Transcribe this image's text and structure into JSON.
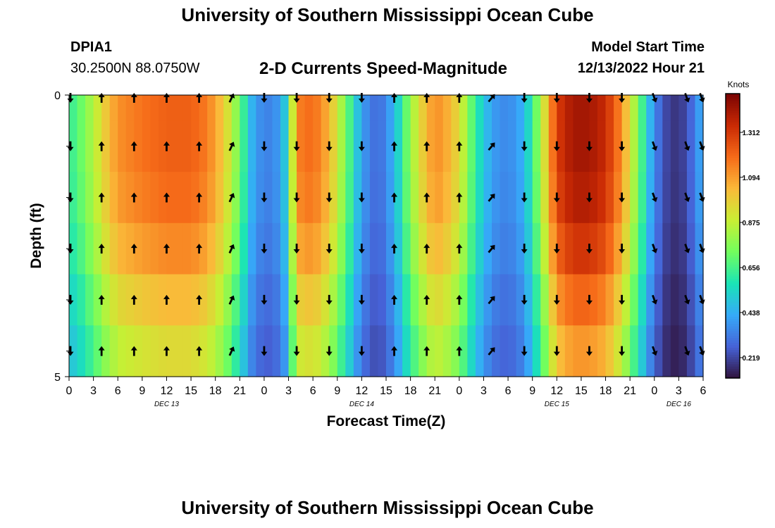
{
  "header": {
    "title": "University of Southern Mississippi Ocean Cube",
    "station_id": "DPIA1",
    "station_location": "30.2500N  88.0750W",
    "chart_title": "2-D Currents Speed-Magnitude",
    "model_start_label": "Model Start Time",
    "model_start_value": "12/13/2022 Hour 21"
  },
  "footer": {
    "title": "University of Southern Mississippi Ocean Cube"
  },
  "chart_data": {
    "type": "heatmap",
    "title": "2-D Currents Speed-Magnitude",
    "xlabel": "Forecast Time(Z)",
    "ylabel": "Depth (ft)",
    "x_tick_labels": [
      "0",
      "3",
      "6",
      "9",
      "12",
      "15",
      "18",
      "21",
      "0",
      "3",
      "6",
      "9",
      "12",
      "15",
      "18",
      "21",
      "0",
      "3",
      "6",
      "9",
      "12",
      "15",
      "18",
      "21",
      "0",
      "3",
      "6"
    ],
    "date_labels": [
      {
        "label": "DEC 13",
        "hour_index": 12
      },
      {
        "label": "DEC 14",
        "hour_index": 36
      },
      {
        "label": "DEC 15",
        "hour_index": 60
      },
      {
        "label": "DEC 16",
        "hour_index": 75
      }
    ],
    "x_range_hours": [
      0,
      78
    ],
    "y_tick_labels": [
      "0",
      "5"
    ],
    "y_range": [
      0,
      5
    ],
    "depth_levels": 5,
    "colorbar": {
      "label": "Knots",
      "ticks": [
        0.219,
        0.438,
        0.656,
        0.875,
        1.094,
        1.312
      ],
      "range": [
        0.12,
        1.5
      ],
      "colors": [
        "#30123b",
        "#4662d7",
        "#36aaf9",
        "#1ae4b6",
        "#72fe5e",
        "#c8ef34",
        "#faba39",
        "#f66b19",
        "#ca2a04",
        "#7a0403"
      ]
    },
    "speed_profile": {
      "hours": [
        0,
        1.5,
        3,
        4.5,
        6,
        9,
        12,
        15,
        17,
        19,
        21,
        22.5,
        24,
        25.5,
        27,
        27.5,
        28,
        30,
        32,
        34,
        36,
        38,
        40,
        42,
        44,
        45,
        46,
        48,
        50,
        52,
        54,
        56,
        58,
        60,
        62,
        64,
        66,
        68,
        70,
        72,
        74,
        76,
        77,
        78
      ],
      "values": [
        0.62,
        0.72,
        0.85,
        1.0,
        1.12,
        1.18,
        1.22,
        1.22,
        1.16,
        1.0,
        0.72,
        0.45,
        0.33,
        0.38,
        0.55,
        0.9,
        1.15,
        1.2,
        1.05,
        0.75,
        0.4,
        0.28,
        0.45,
        0.8,
        1.05,
        1.12,
        1.1,
        0.95,
        0.62,
        0.4,
        0.35,
        0.45,
        0.82,
        1.3,
        1.42,
        1.42,
        1.35,
        1.12,
        0.75,
        0.35,
        0.18,
        0.22,
        0.35,
        0.45
      ]
    },
    "depth_factors": [
      1.0,
      1.0,
      0.98,
      0.93,
      0.85,
      0.78
    ],
    "arrows": {
      "depth_rows": [
        0,
        1,
        2,
        3,
        4,
        5
      ],
      "hours": [
        0,
        4,
        8,
        12,
        16,
        20,
        24,
        28,
        32,
        36,
        40,
        44,
        48,
        52,
        56,
        60,
        64,
        68,
        72,
        76,
        78
      ],
      "directions": [
        "S",
        "N",
        "N",
        "N",
        "N",
        "NNE",
        "S",
        "S",
        "S",
        "S",
        "N",
        "N",
        "N",
        "NE",
        "S",
        "S",
        "S",
        "S",
        "SSE",
        "SSE",
        "SSE"
      ]
    }
  }
}
